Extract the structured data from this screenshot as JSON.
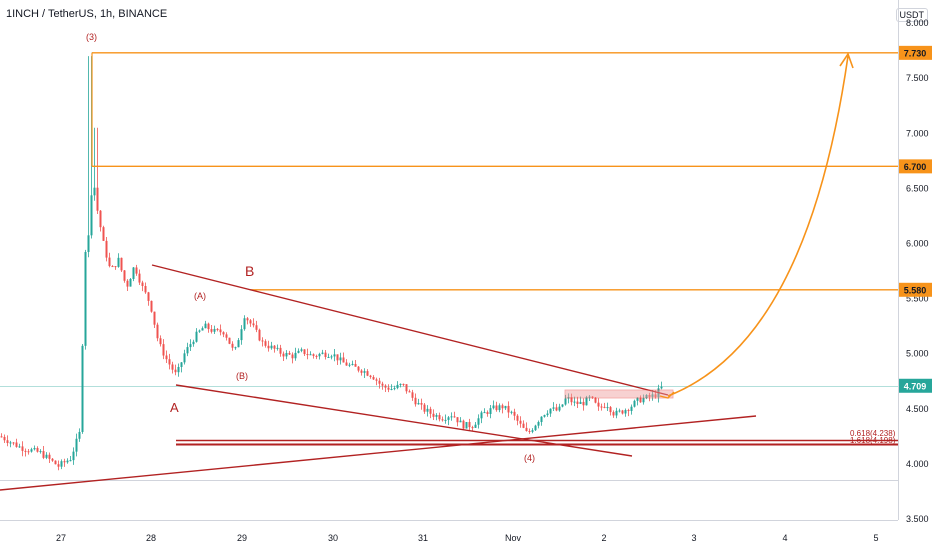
{
  "header": {
    "title": "1INCH / TetherUS, 1h, BINANCE",
    "unit": "USDT"
  },
  "chart_data": {
    "type": "candlestick",
    "symbol": "1INCH / TetherUS",
    "interval": "1h",
    "exchange": "BINANCE",
    "y_ticks": [
      "3.500",
      "4.000",
      "4.500",
      "5.000",
      "5.500",
      "6.000",
      "6.500",
      "7.000",
      "7.500",
      "8.000"
    ],
    "x_ticks": [
      "27",
      "28",
      "29",
      "30",
      "31",
      "Nov",
      "2",
      "3",
      "4",
      "5"
    ],
    "ylim": [
      3.5,
      8.0
    ],
    "current_price": {
      "label": "4.709",
      "value": 4.709,
      "color": "#26a69a"
    },
    "price_levels": [
      {
        "label": "7.730",
        "value": 7.73
      },
      {
        "label": "6.700",
        "value": 6.7
      },
      {
        "label": "5.580",
        "value": 5.58
      }
    ],
    "level_color": "#f7931a",
    "line_color": "#b22222",
    "up_color": "#26a69a",
    "down_color": "#ef5350",
    "fib_labels": [
      "0.618(4.238)",
      "1.618(4.198)"
    ],
    "wave_labels": {
      "w3": "(3)",
      "wA": "A",
      "wB": "B",
      "wA2": "(A)",
      "wB2": "(B)",
      "w4": "(4)"
    }
  }
}
